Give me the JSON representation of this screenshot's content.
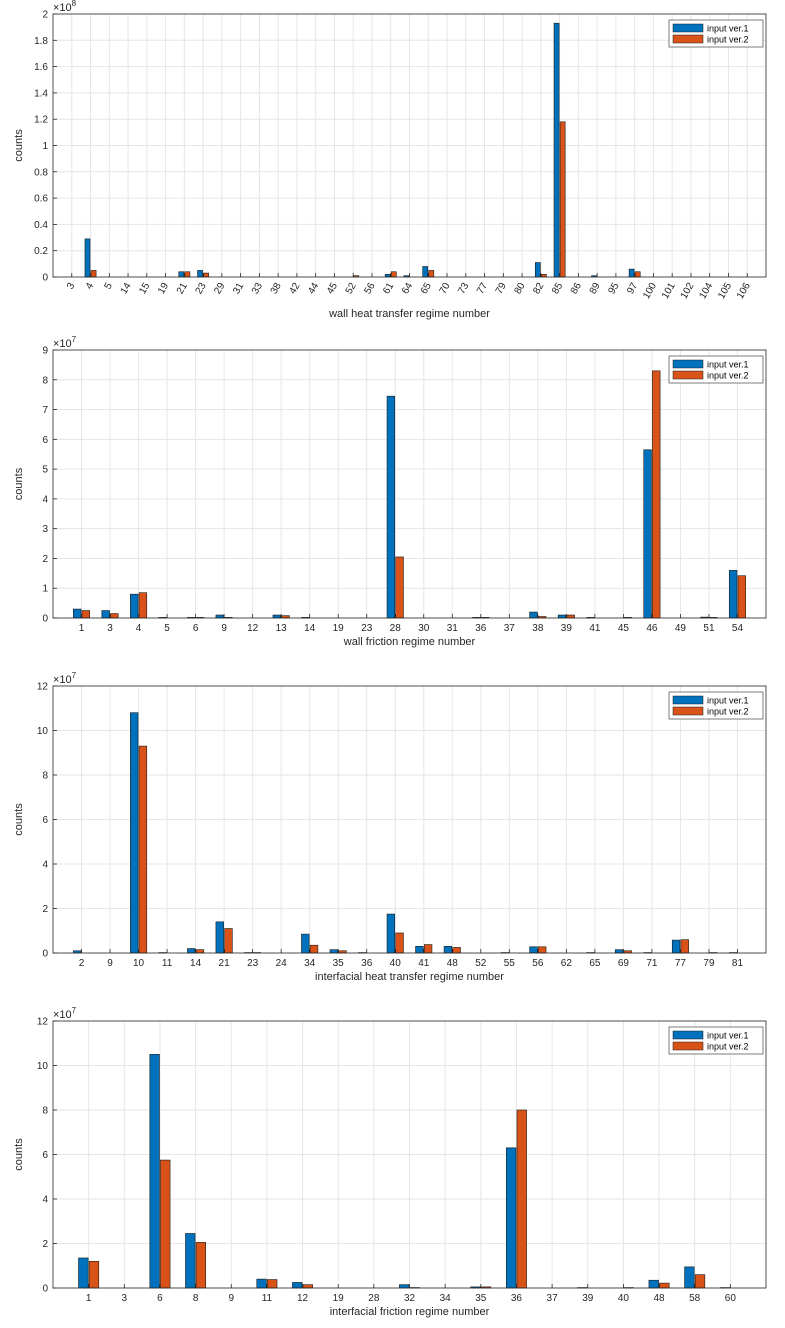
{
  "colors": {
    "series1": "#0072BD",
    "series2": "#D95319",
    "grid": "#e6e6e6",
    "axis": "#262626"
  },
  "chart_data": [
    {
      "type": "bar",
      "xlabel": "wall heat transfer regime number",
      "ylabel": "counts",
      "exponent": "8",
      "ylim": [
        0,
        2
      ],
      "yticks": [
        0,
        0.2,
        0.4,
        0.6,
        0.8,
        1,
        1.2,
        1.4,
        1.6,
        1.8,
        2
      ],
      "ytick_labels": [
        "0",
        "0.2",
        "0.4",
        "0.6",
        "0.8",
        "1",
        "1.2",
        "1.4",
        "1.6",
        "1.8",
        "2"
      ],
      "grid": true,
      "legend_position": "top-right",
      "tick_rotation": 60,
      "categories": [
        "3",
        "4",
        "5",
        "14",
        "15",
        "19",
        "21",
        "23",
        "29",
        "31",
        "33",
        "38",
        "42",
        "44",
        "45",
        "52",
        "56",
        "61",
        "64",
        "65",
        "70",
        "73",
        "77",
        "79",
        "80",
        "82",
        "85",
        "86",
        "89",
        "95",
        "97",
        "100",
        "101",
        "102",
        "104",
        "105",
        "106"
      ],
      "series": [
        {
          "name": "input ver.1",
          "values": [
            0,
            0.29,
            0,
            0,
            0,
            0,
            0.04,
            0.05,
            0,
            0,
            0,
            0,
            0,
            0,
            0,
            0,
            0,
            0.02,
            0.01,
            0.08,
            0,
            0,
            0,
            0,
            0,
            0.11,
            1.93,
            0,
            0.01,
            0,
            0.06,
            0,
            0,
            0,
            0,
            0,
            0
          ]
        },
        {
          "name": "input ver.2",
          "values": [
            0,
            0.05,
            0,
            0,
            0,
            0,
            0.04,
            0.03,
            0,
            0,
            0,
            0,
            0,
            0,
            0,
            0.01,
            0,
            0.04,
            0,
            0.05,
            0,
            0,
            0,
            0,
            0,
            0.02,
            1.18,
            0,
            0,
            0,
            0.04,
            0,
            0,
            0,
            0,
            0,
            0
          ]
        }
      ]
    },
    {
      "type": "bar",
      "xlabel": "wall friction regime number",
      "ylabel": "counts",
      "exponent": "7",
      "ylim": [
        0,
        9
      ],
      "yticks": [
        0,
        1,
        2,
        3,
        4,
        5,
        6,
        7,
        8,
        9
      ],
      "ytick_labels": [
        "0",
        "1",
        "2",
        "3",
        "4",
        "5",
        "6",
        "7",
        "8",
        "9"
      ],
      "grid": true,
      "legend_position": "top-right",
      "tick_rotation": 0,
      "categories": [
        "1",
        "3",
        "4",
        "5",
        "6",
        "9",
        "12",
        "13",
        "14",
        "19",
        "23",
        "28",
        "30",
        "31",
        "36",
        "37",
        "38",
        "39",
        "41",
        "45",
        "46",
        "49",
        "51",
        "54"
      ],
      "series": [
        {
          "name": "input ver.1",
          "values": [
            0.3,
            0.25,
            0.8,
            0.02,
            0.02,
            0.1,
            0,
            0.1,
            0.02,
            0,
            0,
            7.45,
            0,
            0,
            0.02,
            0,
            0.2,
            0.1,
            0.02,
            0,
            5.65,
            0,
            0.03,
            1.6
          ]
        },
        {
          "name": "input ver.2",
          "values": [
            0.25,
            0.15,
            0.85,
            0,
            0.02,
            0.02,
            0,
            0.08,
            0,
            0,
            0,
            2.05,
            0,
            0,
            0.02,
            0,
            0.05,
            0.1,
            0,
            0.02,
            8.3,
            0,
            0.02,
            1.42
          ]
        }
      ]
    },
    {
      "type": "bar",
      "xlabel": "interfacial heat transfer regime number",
      "ylabel": "counts",
      "exponent": "7",
      "ylim": [
        0,
        12
      ],
      "yticks": [
        0,
        2,
        4,
        6,
        8,
        10,
        12
      ],
      "ytick_labels": [
        "0",
        "2",
        "4",
        "6",
        "8",
        "10",
        "12"
      ],
      "grid": true,
      "legend_position": "top-right",
      "tick_rotation": 0,
      "categories": [
        "2",
        "9",
        "10",
        "11",
        "14",
        "21",
        "23",
        "24",
        "34",
        "35",
        "36",
        "40",
        "41",
        "48",
        "52",
        "55",
        "56",
        "62",
        "65",
        "69",
        "71",
        "77",
        "79",
        "81"
      ],
      "series": [
        {
          "name": "input ver.1",
          "values": [
            0.1,
            0,
            10.8,
            0.02,
            0.2,
            1.4,
            0.02,
            0,
            0.85,
            0.15,
            0.02,
            1.75,
            0.3,
            0.3,
            0,
            0.02,
            0.28,
            0,
            0.02,
            0.15,
            0.02,
            0.58,
            0,
            0.02
          ]
        },
        {
          "name": "input ver.2",
          "values": [
            0,
            0,
            9.3,
            0,
            0.15,
            1.1,
            0.02,
            0,
            0.35,
            0.1,
            0,
            0.9,
            0.38,
            0.25,
            0,
            0,
            0.28,
            0,
            0,
            0.1,
            0,
            0.6,
            0.02,
            0
          ]
        }
      ]
    },
    {
      "type": "bar",
      "xlabel": "interfacial friction regime number",
      "ylabel": "counts",
      "exponent": "7",
      "ylim": [
        0,
        12
      ],
      "yticks": [
        0,
        2,
        4,
        6,
        8,
        10,
        12
      ],
      "ytick_labels": [
        "0",
        "2",
        "4",
        "6",
        "8",
        "10",
        "12"
      ],
      "grid": true,
      "legend_position": "top-right",
      "tick_rotation": 0,
      "categories": [
        "1",
        "3",
        "6",
        "8",
        "9",
        "11",
        "12",
        "19",
        "28",
        "32",
        "34",
        "35",
        "36",
        "37",
        "39",
        "40",
        "48",
        "58",
        "60"
      ],
      "series": [
        {
          "name": "input ver.1",
          "values": [
            1.35,
            0,
            10.5,
            2.45,
            0,
            0.4,
            0.25,
            0,
            0,
            0.15,
            0,
            0.05,
            6.3,
            0,
            0.02,
            0,
            0.35,
            0.95,
            0.02
          ]
        },
        {
          "name": "input ver.2",
          "values": [
            1.2,
            0,
            5.75,
            2.05,
            0,
            0.38,
            0.15,
            0,
            0,
            0.02,
            0,
            0.05,
            8.0,
            0,
            0,
            0.02,
            0.22,
            0.6,
            0
          ]
        }
      ]
    }
  ]
}
